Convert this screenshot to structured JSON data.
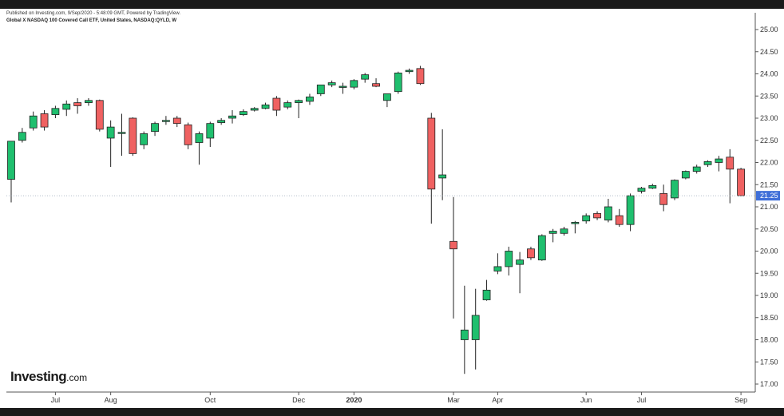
{
  "header": {
    "published": "Published on Investing.com, 9/Sep/2020 - 5:48:09 GMT, Powered by TradingView.",
    "symbol": "Global X NASDAQ 100 Covered Call ETF, United States, NASDAQ:QYLD, W"
  },
  "logo": {
    "name": "Investing",
    "suffix": ".com"
  },
  "colors": {
    "up": "#1fbf6e",
    "down": "#ef6161",
    "price_tag": "#3f6fd8"
  },
  "chart_data": {
    "type": "candlestick",
    "interval": "W",
    "y_axis": {
      "min": 17.0,
      "max": 25.0,
      "ticks": [
        "25.00",
        "24.50",
        "24.00",
        "23.50",
        "23.00",
        "22.50",
        "22.00",
        "21.50",
        "21.00",
        "20.50",
        "20.00",
        "19.50",
        "19.00",
        "18.50",
        "18.00",
        "17.50",
        "17.00"
      ],
      "position": "right"
    },
    "x_axis": {
      "labels": [
        {
          "label": "Jul",
          "week": 4
        },
        {
          "label": "Aug",
          "week": 9
        },
        {
          "label": "Oct",
          "week": 18
        },
        {
          "label": "Dec",
          "week": 26
        },
        {
          "label": "2020",
          "week": 31,
          "bold": true
        },
        {
          "label": "Mar",
          "week": 40
        },
        {
          "label": "Apr",
          "week": 44
        },
        {
          "label": "Jun",
          "week": 52
        },
        {
          "label": "Jul",
          "week": 57
        },
        {
          "label": "Sep",
          "week": 66
        }
      ]
    },
    "last_price": 21.25,
    "last_price_label": "21.25",
    "grid": false,
    "candles": [
      {
        "o": 21.62,
        "h": 22.48,
        "l": 21.1,
        "c": 22.48
      },
      {
        "o": 22.5,
        "h": 22.78,
        "l": 22.45,
        "c": 22.68
      },
      {
        "o": 22.78,
        "h": 23.15,
        "l": 22.72,
        "c": 23.05
      },
      {
        "o": 23.1,
        "h": 23.18,
        "l": 22.72,
        "c": 22.8
      },
      {
        "o": 23.08,
        "h": 23.28,
        "l": 23.0,
        "c": 23.22
      },
      {
        "o": 23.2,
        "h": 23.4,
        "l": 23.05,
        "c": 23.32
      },
      {
        "o": 23.35,
        "h": 23.45,
        "l": 23.1,
        "c": 23.28
      },
      {
        "o": 23.35,
        "h": 23.45,
        "l": 23.28,
        "c": 23.4
      },
      {
        "o": 23.4,
        "h": 23.42,
        "l": 22.7,
        "c": 22.75
      },
      {
        "o": 22.55,
        "h": 22.95,
        "l": 21.9,
        "c": 22.8
      },
      {
        "o": 22.68,
        "h": 23.1,
        "l": 22.15,
        "c": 22.68
      },
      {
        "o": 23.0,
        "h": 23.02,
        "l": 22.15,
        "c": 22.2
      },
      {
        "o": 22.4,
        "h": 22.7,
        "l": 22.3,
        "c": 22.65
      },
      {
        "o": 22.7,
        "h": 22.92,
        "l": 22.6,
        "c": 22.88
      },
      {
        "o": 22.95,
        "h": 23.05,
        "l": 22.85,
        "c": 22.95
      },
      {
        "o": 23.0,
        "h": 23.05,
        "l": 22.8,
        "c": 22.88
      },
      {
        "o": 22.85,
        "h": 22.9,
        "l": 22.3,
        "c": 22.4
      },
      {
        "o": 22.45,
        "h": 22.7,
        "l": 21.95,
        "c": 22.65
      },
      {
        "o": 22.55,
        "h": 22.92,
        "l": 22.35,
        "c": 22.88
      },
      {
        "o": 22.9,
        "h": 23.0,
        "l": 22.85,
        "c": 22.95
      },
      {
        "o": 23.0,
        "h": 23.18,
        "l": 22.88,
        "c": 23.05
      },
      {
        "o": 23.08,
        "h": 23.2,
        "l": 23.05,
        "c": 23.15
      },
      {
        "o": 23.18,
        "h": 23.25,
        "l": 23.15,
        "c": 23.22
      },
      {
        "o": 23.22,
        "h": 23.35,
        "l": 23.2,
        "c": 23.3
      },
      {
        "o": 23.45,
        "h": 23.5,
        "l": 23.05,
        "c": 23.18
      },
      {
        "o": 23.25,
        "h": 23.4,
        "l": 23.2,
        "c": 23.35
      },
      {
        "o": 23.35,
        "h": 23.42,
        "l": 23.0,
        "c": 23.4
      },
      {
        "o": 23.38,
        "h": 23.55,
        "l": 23.3,
        "c": 23.48
      },
      {
        "o": 23.55,
        "h": 23.75,
        "l": 23.5,
        "c": 23.75
      },
      {
        "o": 23.75,
        "h": 23.85,
        "l": 23.7,
        "c": 23.8
      },
      {
        "o": 23.7,
        "h": 23.8,
        "l": 23.55,
        "c": 23.72
      },
      {
        "o": 23.7,
        "h": 23.88,
        "l": 23.65,
        "c": 23.85
      },
      {
        "o": 23.88,
        "h": 24.02,
        "l": 23.8,
        "c": 23.98
      },
      {
        "o": 23.78,
        "h": 23.9,
        "l": 23.7,
        "c": 23.72
      },
      {
        "o": 23.4,
        "h": 23.55,
        "l": 23.25,
        "c": 23.55
      },
      {
        "o": 23.6,
        "h": 24.05,
        "l": 23.55,
        "c": 24.02
      },
      {
        "o": 24.05,
        "h": 24.12,
        "l": 24.0,
        "c": 24.08
      },
      {
        "o": 24.12,
        "h": 24.18,
        "l": 23.75,
        "c": 23.78
      },
      {
        "o": 23.0,
        "h": 23.12,
        "l": 20.62,
        "c": 21.4
      },
      {
        "o": 21.65,
        "h": 22.75,
        "l": 21.15,
        "c": 21.72
      },
      {
        "o": 20.22,
        "h": 21.22,
        "l": 18.48,
        "c": 20.05
      },
      {
        "o": 18.0,
        "h": 19.22,
        "l": 17.23,
        "c": 18.22
      },
      {
        "o": 18.0,
        "h": 19.15,
        "l": 17.33,
        "c": 18.55
      },
      {
        "o": 18.9,
        "h": 19.35,
        "l": 18.88,
        "c": 19.12
      },
      {
        "o": 19.55,
        "h": 19.95,
        "l": 19.48,
        "c": 19.65
      },
      {
        "o": 19.65,
        "h": 20.1,
        "l": 19.45,
        "c": 20.0
      },
      {
        "o": 19.7,
        "h": 19.98,
        "l": 19.05,
        "c": 19.8
      },
      {
        "o": 20.05,
        "h": 20.1,
        "l": 19.8,
        "c": 19.85
      },
      {
        "o": 19.8,
        "h": 20.38,
        "l": 19.78,
        "c": 20.35
      },
      {
        "o": 20.4,
        "h": 20.5,
        "l": 20.2,
        "c": 20.45
      },
      {
        "o": 20.4,
        "h": 20.55,
        "l": 20.35,
        "c": 20.5
      },
      {
        "o": 20.62,
        "h": 20.68,
        "l": 20.4,
        "c": 20.65
      },
      {
        "o": 20.68,
        "h": 20.85,
        "l": 20.62,
        "c": 20.8
      },
      {
        "o": 20.85,
        "h": 20.9,
        "l": 20.7,
        "c": 20.75
      },
      {
        "o": 20.7,
        "h": 21.18,
        "l": 20.65,
        "c": 21.0
      },
      {
        "o": 20.8,
        "h": 20.95,
        "l": 20.55,
        "c": 20.6
      },
      {
        "o": 20.6,
        "h": 21.3,
        "l": 20.45,
        "c": 21.25
      },
      {
        "o": 21.35,
        "h": 21.45,
        "l": 21.3,
        "c": 21.42
      },
      {
        "o": 21.42,
        "h": 21.52,
        "l": 21.4,
        "c": 21.48
      },
      {
        "o": 21.3,
        "h": 21.5,
        "l": 20.9,
        "c": 21.05
      },
      {
        "o": 21.2,
        "h": 21.62,
        "l": 21.15,
        "c": 21.6
      },
      {
        "o": 21.65,
        "h": 21.82,
        "l": 21.62,
        "c": 21.8
      },
      {
        "o": 21.8,
        "h": 21.95,
        "l": 21.75,
        "c": 21.9
      },
      {
        "o": 21.95,
        "h": 22.05,
        "l": 21.9,
        "c": 22.02
      },
      {
        "o": 22.0,
        "h": 22.15,
        "l": 21.8,
        "c": 22.08
      },
      {
        "o": 22.12,
        "h": 22.3,
        "l": 21.08,
        "c": 21.85
      },
      {
        "o": 21.85,
        "h": 21.88,
        "l": 21.25,
        "c": 21.25
      }
    ]
  }
}
